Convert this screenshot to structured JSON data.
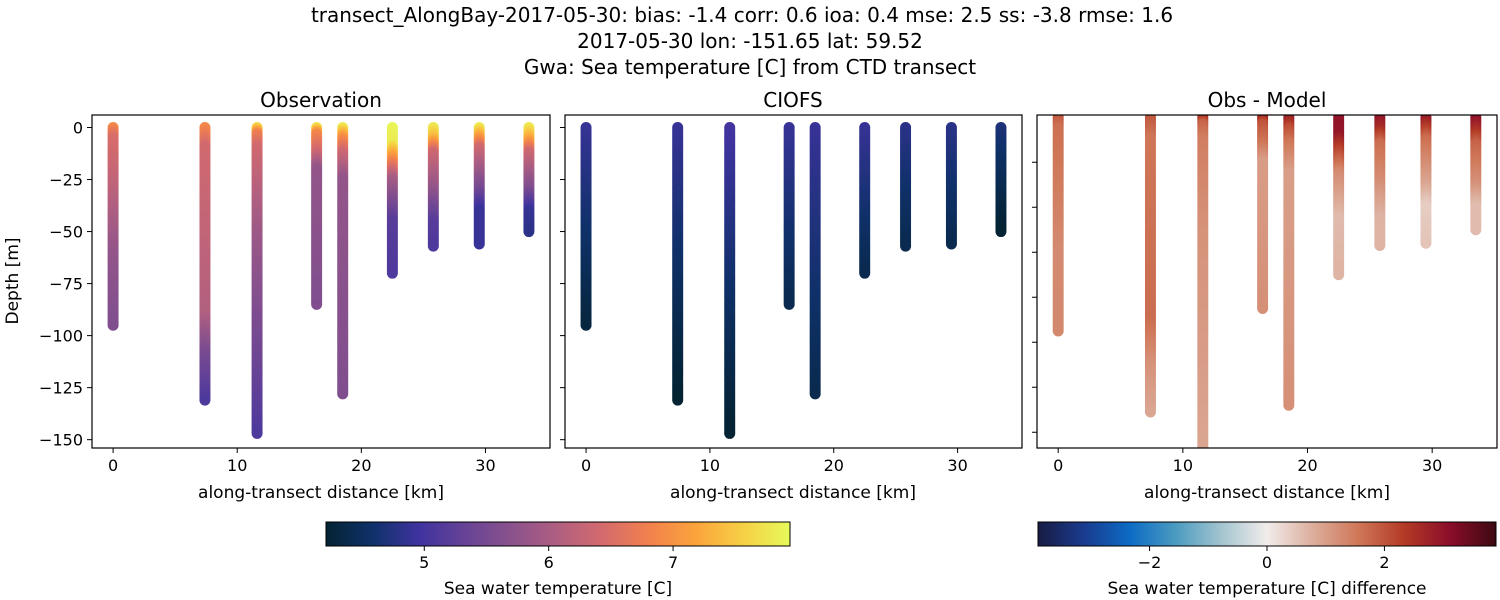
{
  "title_lines": [
    "transect_AlongBay-2017-05-30: bias: -1.4  corr: 0.6  ioa: 0.4  mse: 2.5  ss: -3.8  rmse: 1.6",
    "2017-05-30 lon: -151.65 lat: 59.52",
    "Gwa: Sea temperature [C] from CTD transect"
  ],
  "chart_data": [
    {
      "type": "scatter",
      "title": "Observation",
      "xlabel": "along-transect distance [km]",
      "ylabel": "Depth [m]",
      "xlim": [
        -1.7,
        35.2
      ],
      "ylim": [
        -154,
        6
      ],
      "xticks": [
        0,
        10,
        20,
        30
      ],
      "yticks": [
        0,
        -25,
        -50,
        -75,
        -100,
        -125,
        -150
      ],
      "colormap": "thermal",
      "color_range": [
        4.21,
        7.94
      ],
      "casts": [
        {
          "x": 0.0,
          "profile": [
            [
              0,
              6.9
            ],
            [
              -5,
              6.5
            ],
            [
              -30,
              6.2
            ],
            [
              -60,
              5.8
            ],
            [
              -95,
              5.6
            ]
          ]
        },
        {
          "x": 7.4,
          "profile": [
            [
              0,
              6.9
            ],
            [
              -10,
              6.4
            ],
            [
              -90,
              6.1
            ],
            [
              -110,
              5.5
            ],
            [
              -131,
              5.1
            ]
          ]
        },
        {
          "x": 11.6,
          "profile": [
            [
              0,
              7.6
            ],
            [
              -3,
              6.8
            ],
            [
              -10,
              6.4
            ],
            [
              -50,
              5.9
            ],
            [
              -100,
              5.5
            ],
            [
              -147,
              5.1
            ]
          ]
        },
        {
          "x": 16.4,
          "profile": [
            [
              0,
              7.7
            ],
            [
              -3,
              6.9
            ],
            [
              -12,
              6.4
            ],
            [
              -20,
              5.8
            ],
            [
              -85,
              5.6
            ]
          ]
        },
        {
          "x": 18.5,
          "profile": [
            [
              0,
              7.8
            ],
            [
              -5,
              7.0
            ],
            [
              -12,
              6.4
            ],
            [
              -25,
              5.8
            ],
            [
              -128,
              5.6
            ]
          ]
        },
        {
          "x": 22.5,
          "profile": [
            [
              0,
              7.9
            ],
            [
              -8,
              7.8
            ],
            [
              -15,
              7.0
            ],
            [
              -25,
              6.0
            ],
            [
              -45,
              5.2
            ],
            [
              -70,
              5.1
            ]
          ]
        },
        {
          "x": 25.8,
          "profile": [
            [
              0,
              7.8
            ],
            [
              -5,
              7.4
            ],
            [
              -12,
              6.4
            ],
            [
              -30,
              5.8
            ],
            [
              -45,
              5.2
            ],
            [
              -57,
              5.1
            ]
          ]
        },
        {
          "x": 29.5,
          "profile": [
            [
              0,
              7.8
            ],
            [
              -5,
              7.1
            ],
            [
              -10,
              6.4
            ],
            [
              -30,
              5.5
            ],
            [
              -40,
              4.9
            ],
            [
              -56,
              4.9
            ]
          ]
        },
        {
          "x": 33.5,
          "profile": [
            [
              0,
              7.8
            ],
            [
              -5,
              7.3
            ],
            [
              -12,
              6.4
            ],
            [
              -30,
              5.6
            ],
            [
              -40,
              4.9
            ],
            [
              -50,
              4.8
            ]
          ]
        }
      ]
    },
    {
      "type": "scatter",
      "title": "CIOFS",
      "xlabel": "along-transect distance [km]",
      "xlim": [
        -1.7,
        35.2
      ],
      "ylim": [
        -154,
        6
      ],
      "xticks": [
        0,
        10,
        20,
        30
      ],
      "yticks": [
        0,
        -25,
        -50,
        -75,
        -100,
        -125,
        -150
      ],
      "colormap": "thermal",
      "color_range": [
        4.21,
        7.94
      ],
      "casts": [
        {
          "x": 0.0,
          "profile": [
            [
              0,
              4.9
            ],
            [
              -95,
              4.3
            ]
          ]
        },
        {
          "x": 7.4,
          "profile": [
            [
              0,
              4.9
            ],
            [
              -131,
              4.2
            ]
          ]
        },
        {
          "x": 11.6,
          "profile": [
            [
              0,
              5.0
            ],
            [
              -147,
              4.2
            ]
          ]
        },
        {
          "x": 16.4,
          "profile": [
            [
              0,
              4.9
            ],
            [
              -85,
              4.4
            ]
          ]
        },
        {
          "x": 18.5,
          "profile": [
            [
              0,
              4.9
            ],
            [
              -128,
              4.4
            ]
          ]
        },
        {
          "x": 22.5,
          "profile": [
            [
              0,
              4.9
            ],
            [
              -70,
              4.4
            ]
          ]
        },
        {
          "x": 25.8,
          "profile": [
            [
              0,
              4.8
            ],
            [
              -57,
              4.4
            ]
          ]
        },
        {
          "x": 29.5,
          "profile": [
            [
              0,
              4.8
            ],
            [
              -56,
              4.4
            ]
          ]
        },
        {
          "x": 33.5,
          "profile": [
            [
              0,
              4.7
            ],
            [
              -50,
              4.2
            ]
          ]
        }
      ]
    },
    {
      "type": "scatter",
      "title": "Obs - Model",
      "xlabel": "along-transect distance [km]",
      "xlim": [
        -1.7,
        35.2
      ],
      "ylim": [
        -147,
        1
      ],
      "xticks": [
        0,
        10,
        20,
        30
      ],
      "yticks": [
        -20,
        -40,
        -60,
        -80,
        -100,
        -120,
        -140
      ],
      "colormap": "balance",
      "color_range": [
        -3.9,
        3.9
      ],
      "values": "observation minus CIOFS"
    }
  ],
  "colorbars": [
    {
      "label": "Sea water temperature [C]",
      "ticks": [
        5,
        6,
        7
      ],
      "range": [
        4.21,
        7.94
      ],
      "colormap": "thermal"
    },
    {
      "label": "Sea water temperature [C] difference",
      "ticks": [
        -2,
        0,
        2
      ],
      "range": [
        -3.9,
        3.9
      ],
      "colormap": "balance"
    }
  ],
  "colormaps": {
    "thermal": [
      "#042333",
      "#0f3169",
      "#3f339f",
      "#674396",
      "#8a528c",
      "#b05f81",
      "#d56b6c",
      "#f2824c",
      "#fba53c",
      "#f6d045",
      "#e7fa5a"
    ],
    "balance": [
      "#181c43",
      "#1a3b8e",
      "#0c6bc4",
      "#4a9bc0",
      "#a3c4cf",
      "#f1eceb",
      "#dcae9c",
      "#cf7657",
      "#b33a26",
      "#8a0d2a",
      "#3c0912"
    ]
  }
}
